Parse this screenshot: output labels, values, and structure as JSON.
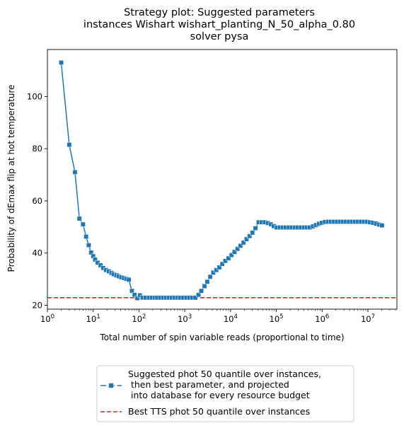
{
  "chart_data": {
    "type": "line",
    "title": [
      "Strategy plot: Suggested parameters",
      "instances Wishart wishart_planting_N_50_alpha_0.80",
      "solver pysa"
    ],
    "xlabel": "Total number of spin variable reads (proportional to time)",
    "ylabel": "Probability of dEmax flip at hot temperature",
    "x_scale": "log",
    "xlim": [
      1,
      43000000
    ],
    "ylim": [
      18.5,
      118
    ],
    "x_tick_labels": [
      {
        "exp": 0,
        "label": "10",
        "sup": "0"
      },
      {
        "exp": 1,
        "label": "10",
        "sup": "1"
      },
      {
        "exp": 2,
        "label": "10",
        "sup": "2"
      },
      {
        "exp": 3,
        "label": "10",
        "sup": "3"
      },
      {
        "exp": 4,
        "label": "10",
        "sup": "4"
      },
      {
        "exp": 5,
        "label": "10",
        "sup": "5"
      },
      {
        "exp": 6,
        "label": "10",
        "sup": "6"
      },
      {
        "exp": 7,
        "label": "10",
        "sup": "7"
      }
    ],
    "y_ticks": [
      20,
      40,
      60,
      80,
      100
    ],
    "grid": false,
    "legend_placement": "below plot, centered",
    "series": [
      {
        "name": "Suggested phot 50 quantile over instances,\n then best parameter, and projected\n into database for every resource budget",
        "color": "#1f77b4",
        "marker": "square",
        "line_style": "solid",
        "x": [
          2,
          3,
          4,
          5,
          6,
          7,
          8,
          9,
          10,
          11,
          12.5,
          14.5,
          16.5,
          19,
          22,
          25,
          28,
          32,
          36,
          41,
          47,
          53,
          60,
          70,
          80,
          92,
          105,
          120,
          140,
          165,
          190,
          220,
          250,
          290,
          340,
          390,
          450,
          520,
          600,
          700,
          800,
          930,
          1080,
          1250,
          1450,
          1700,
          2000,
          2300,
          2700,
          3100,
          3600,
          4200,
          4900,
          5700,
          6600,
          7700,
          9000,
          10500,
          12200,
          14200,
          16500,
          19200,
          22300,
          26000,
          30000,
          35000,
          41000,
          48000,
          56000,
          65000,
          76000,
          88000,
          102000,
          119000,
          138000,
          161000,
          187000,
          218000,
          254000,
          295000,
          343000,
          400000,
          465000,
          540000,
          630000,
          730000,
          850000,
          990000,
          1150000,
          1340000,
          1560000,
          1810000,
          2110000,
          2450000,
          2850000,
          3320000,
          3860000,
          4490000,
          5220000,
          6080000,
          7070000,
          8220000,
          9570000,
          11100000,
          12900000,
          15000000,
          17500000,
          20300000
        ],
        "values": [
          113,
          81.5,
          71,
          53.2,
          51,
          46.3,
          43,
          40.2,
          38.8,
          37.5,
          36.3,
          35.3,
          34.3,
          33.5,
          33,
          32.4,
          31.9,
          31.5,
          31.1,
          30.7,
          30.4,
          30.1,
          29.8,
          25.5,
          24,
          22.7,
          23.8,
          22.9,
          22.9,
          22.9,
          22.9,
          22.9,
          22.9,
          22.9,
          22.9,
          22.9,
          22.9,
          22.9,
          22.9,
          22.9,
          22.9,
          22.9,
          22.9,
          22.9,
          22.9,
          22.9,
          24,
          25.5,
          27.3,
          29,
          30.9,
          32.5,
          33.5,
          34.5,
          35.8,
          37,
          38,
          39.2,
          40.4,
          41.6,
          42.8,
          44,
          45.3,
          46.5,
          47.8,
          49.5,
          51.8,
          51.8,
          51.8,
          51.5,
          51,
          50.3,
          49.8,
          49.8,
          49.8,
          49.8,
          49.8,
          49.8,
          49.8,
          49.8,
          49.8,
          49.8,
          49.8,
          49.8,
          50.2,
          50.7,
          51.2,
          51.6,
          51.9,
          52,
          52,
          52,
          52,
          52,
          52,
          52,
          52,
          52,
          52,
          52,
          52,
          52,
          52,
          51.8,
          51.6,
          51.3,
          50.9,
          50.6
        ]
      }
    ],
    "reference_lines": [
      {
        "name": "Best TTS phot 50 quantile over instances",
        "orientation": "horizontal",
        "y": 22.9,
        "color": "#d62728",
        "line_style": "dashed"
      }
    ]
  }
}
